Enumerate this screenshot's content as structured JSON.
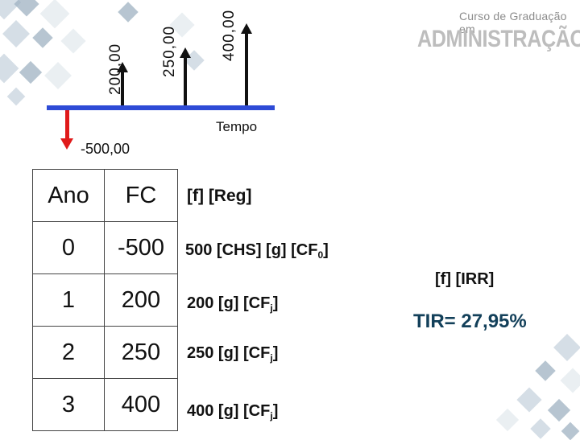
{
  "brand": {
    "top_line": "Curso de Graduação em",
    "main_line": "ADMINISTRAÇÃO"
  },
  "cashflow_diagram": {
    "inflow_labels": [
      "200,00",
      "250,00",
      "400,00"
    ],
    "outflow_label": "-500,00",
    "axis_label": "Tempo",
    "axis_color": "#2e4bd6",
    "outflow_color": "#e01a1a"
  },
  "table": {
    "headers": [
      "Ano",
      "FC"
    ],
    "rows": [
      {
        "ano": "0",
        "fc": "-500"
      },
      {
        "ano": "1",
        "fc": "200"
      },
      {
        "ano": "2",
        "fc": "250"
      },
      {
        "ano": "3",
        "fc": "400"
      }
    ]
  },
  "hp12c": {
    "clear": "[f] [Reg]",
    "steps": [
      {
        "main": "500 [CHS] [g] [CF",
        "sub": "0",
        "end": "]"
      },
      {
        "main": "200 [g] [CF",
        "sub": "j",
        "end": "]"
      },
      {
        "main": "250 [g] [CF",
        "sub": "j",
        "end": "]"
      },
      {
        "main": "400 [g] [CF",
        "sub": "j",
        "end": "]"
      }
    ],
    "irr_key": "[f] [IRR]",
    "result": "TIR= 27,95%"
  }
}
